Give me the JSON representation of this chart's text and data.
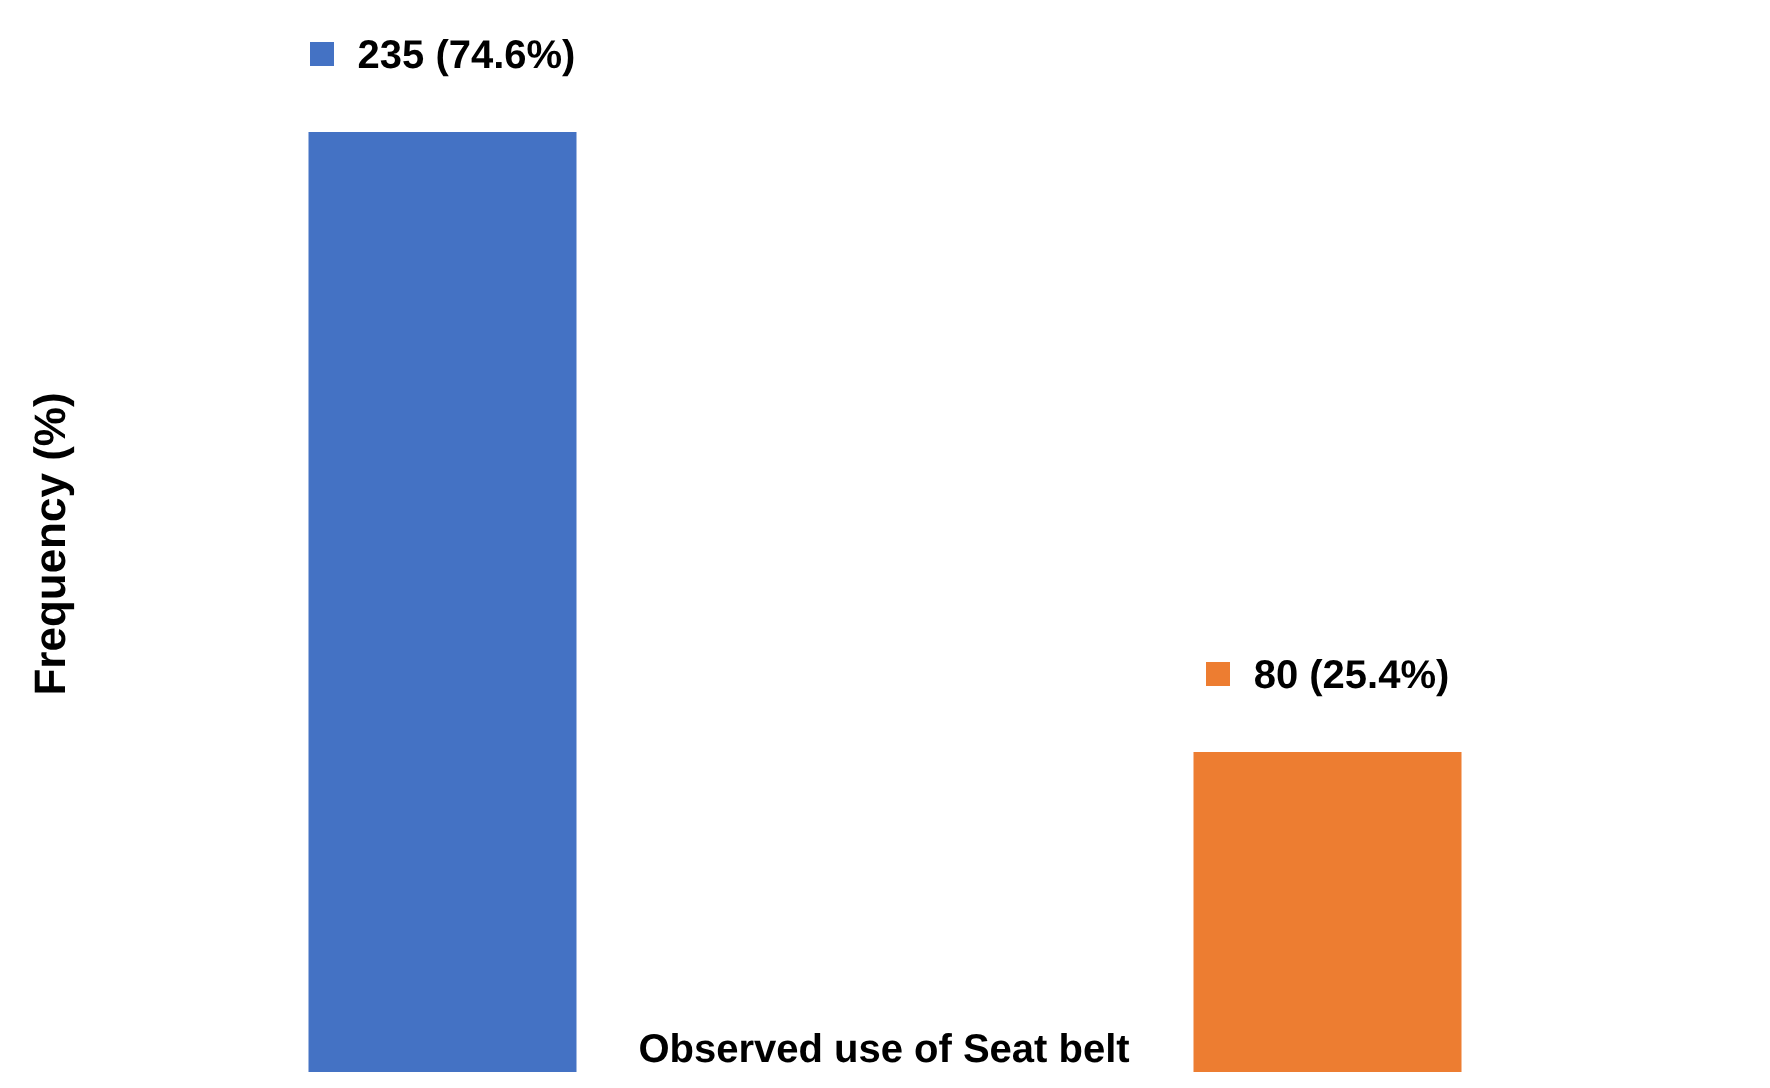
{
  "chart_data": {
    "type": "bar",
    "xlabel": "Observed use of Seat belt",
    "ylabel": "Frequency (%)",
    "categories": [
      null,
      null
    ],
    "values": [
      235,
      80
    ],
    "colors": [
      "#4472c4",
      "#ed7d31"
    ],
    "value_labels": [
      "235 (74.6%)",
      "80 (25.4%)"
    ],
    "grid": false
  }
}
